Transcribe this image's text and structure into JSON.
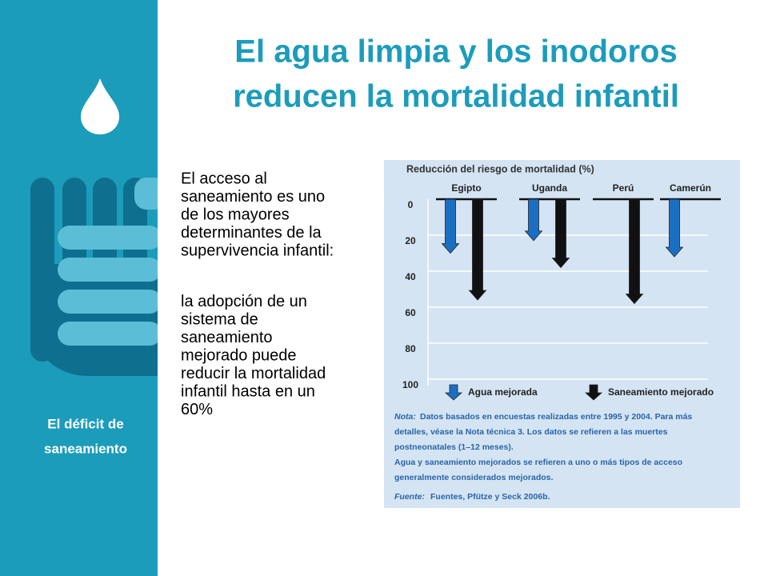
{
  "title": [
    "El agua limpia y los inodoros",
    "reducen la mortalidad infantil"
  ],
  "sidebar": [
    "El déficit de",
    "saneamiento"
  ],
  "body": [
    [
      "El acceso al",
      "saneamiento es uno",
      "de los mayores",
      "determinantes de la",
      "supervivencia infantil:"
    ],
    [
      "la adopción de un",
      "sistema de",
      "saneamiento",
      "mejorado puede",
      "reducir la mortalidad",
      "infantil hasta en un",
      "60%"
    ]
  ],
  "chart_data": {
    "type": "arrow",
    "title": "Reducción del riesgo de mortalidad (%)",
    "categories": [
      "Egipto",
      "Uganda",
      "Perú",
      "Camerún"
    ],
    "series": [
      {
        "name": "Agua mejorada",
        "color": "#1b6fc2",
        "values": [
          30,
          23,
          null,
          32
        ]
      },
      {
        "name": "Saneamiento mejorado",
        "color": "#111111",
        "values": [
          56,
          38,
          58,
          null
        ]
      }
    ],
    "ylim": [
      0,
      100
    ],
    "yticks": [
      0,
      20,
      40,
      60,
      80,
      100
    ],
    "y_inverted": true,
    "grid": true,
    "legend": "bottom",
    "note": {
      "label": "Nota:",
      "lines": [
        "Datos basados en encuestas realizadas entre 1995 y 2004. Para más",
        "detalles, véase la Nota técnica 3. Los datos se refieren a las muertes",
        "postneonatales (1–12 meses).",
        "Agua y saneamiento mejorados se refieren a uno o más tipos de acceso",
        "generalmente considerados mejorados."
      ]
    },
    "source": {
      "label": "Fuente:",
      "text": "Fuentes, Pfütze y Seck 2006b."
    }
  }
}
